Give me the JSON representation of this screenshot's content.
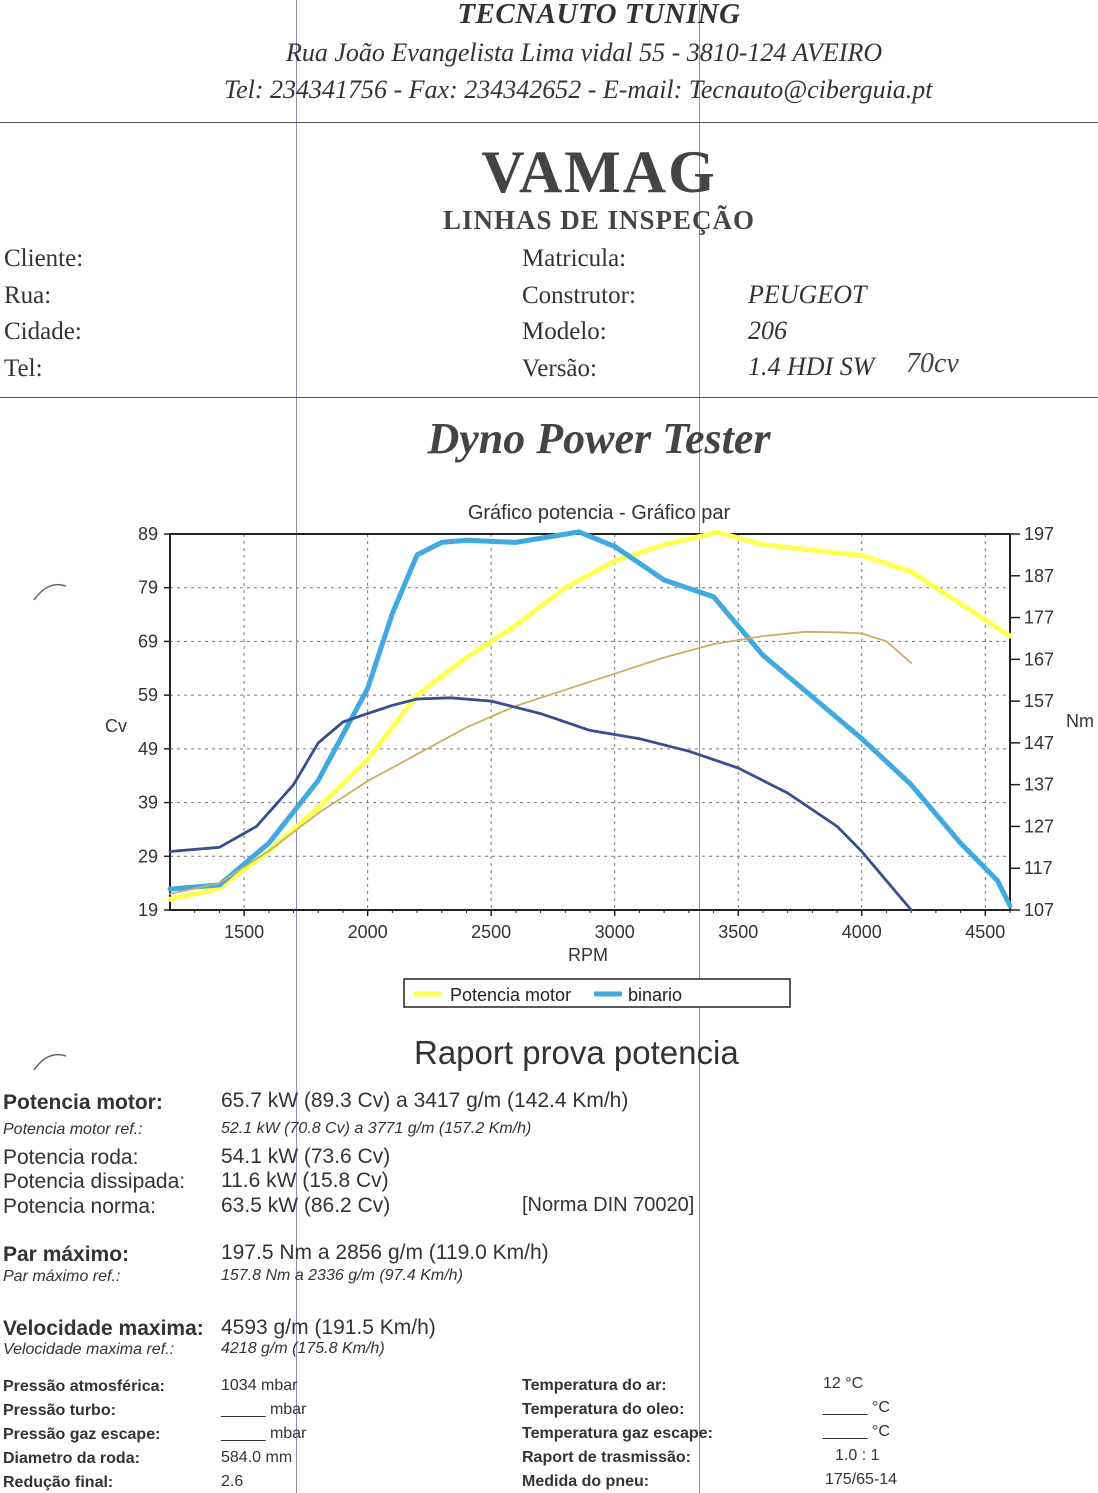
{
  "header": {
    "company": "TECNAUTO TUNING",
    "address": "Rua João Evangelista Lima vidal 55 - 3810-124 AVEIRO",
    "contacts": "Tel: 234341756 - Fax: 234342652 - E-mail: Tecnauto@ciberguia.pt"
  },
  "brand": {
    "name": "VAMAG",
    "subtitle": "LINHAS DE INSPEÇÃO"
  },
  "client": {
    "cliente_label": "Cliente:",
    "rua_label": "Rua:",
    "cidade_label": "Cidade:",
    "tel_label": "Tel:"
  },
  "vehicle": {
    "matricula_label": "Matricula:",
    "construtor_label": "Construtor:",
    "construtor": "PEUGEOT",
    "modelo_label": "Modelo:",
    "modelo": "206",
    "versao_label": "Versão:",
    "versao": "1.4 HDI SW",
    "versao_note": "70cv"
  },
  "section_title": "Dyno Power Tester",
  "chart_data": {
    "type": "line",
    "title": "Gráfico potencia - Gráfico par",
    "xlabel": "RPM",
    "ylabel_left": "Cv",
    "ylabel_right": "Nm",
    "xlim": [
      1200,
      4600
    ],
    "ylim_left": [
      19,
      89
    ],
    "ylim_right": [
      107,
      197
    ],
    "x_ticks": [
      1500,
      2000,
      2500,
      3000,
      3500,
      4000,
      4500
    ],
    "y_ticks_left": [
      19,
      29,
      39,
      49,
      59,
      69,
      79,
      89
    ],
    "y_ticks_right": [
      107,
      117,
      127,
      137,
      147,
      157,
      167,
      177,
      187,
      197
    ],
    "grid": true,
    "legend": "bottom",
    "series": [
      {
        "name": "Potencia motor",
        "axis": "left",
        "color": "#ffff55",
        "x": [
          1200,
          1400,
          1600,
          1800,
          2000,
          2200,
          2400,
          2600,
          2800,
          3000,
          3200,
          3417,
          3600,
          3800,
          4000,
          4200,
          4400,
          4600
        ],
        "y": [
          21,
          23,
          30,
          38,
          47,
          59,
          66,
          72,
          79,
          84,
          87,
          89.3,
          87,
          86,
          85,
          82,
          76,
          70
        ]
      },
      {
        "name": "binario",
        "axis": "right",
        "color": "#3fa9e0",
        "x": [
          1200,
          1400,
          1600,
          1800,
          2000,
          2100,
          2200,
          2300,
          2400,
          2600,
          2856,
          3000,
          3200,
          3400,
          3600,
          3800,
          4000,
          4200,
          4400,
          4550,
          4600
        ],
        "y": [
          112,
          113,
          123,
          138,
          160,
          178,
          192,
          195,
          195.5,
          195,
          197.5,
          194,
          186,
          182,
          168,
          158,
          148,
          137,
          123,
          114,
          108
        ]
      },
      {
        "axis": "left",
        "color": "#c8b060",
        "x": [
          1200,
          1400,
          1600,
          1800,
          2000,
          2200,
          2400,
          2600,
          2800,
          3000,
          3200,
          3400,
          3600,
          3771,
          3900,
          4000,
          4100,
          4200
        ],
        "y": [
          22,
          24,
          30,
          37,
          43,
          48,
          53,
          57,
          60,
          63,
          66,
          68.5,
          70,
          70.8,
          70.7,
          70.5,
          69,
          65
        ]
      },
      {
        "axis": "right",
        "color": "#3b4e8c",
        "x": [
          1200,
          1400,
          1550,
          1700,
          1800,
          1900,
          2000,
          2100,
          2200,
          2336,
          2500,
          2700,
          2900,
          3100,
          3300,
          3500,
          3700,
          3900,
          4000,
          4100,
          4200
        ],
        "y": [
          121,
          122,
          127,
          137,
          147,
          152,
          154,
          156,
          157.5,
          157.8,
          157,
          154,
          150,
          148,
          145,
          141,
          135,
          127,
          121,
          114,
          107
        ]
      }
    ]
  },
  "report": {
    "title": "Raport prova potencia",
    "potencia_motor_label": "Potencia motor:",
    "potencia_motor_value": "65.7 kW (89.3 Cv) a 3417 g/m (142.4 Km/h)",
    "potencia_motor_ref_label": "Potencia motor ref.:",
    "potencia_motor_ref_value": "52.1 kW (70.8 Cv) a 3771 g/m (157.2 Km/h)",
    "potencia_roda_label": "Potencia roda:",
    "potencia_roda_value": "54.1 kW (73.6 Cv)",
    "potencia_dissipada_label": "Potencia dissipada:",
    "potencia_dissipada_value": "11.6 kW (15.8 Cv)",
    "potencia_norma_label": "Potencia norma:",
    "potencia_norma_value": "63.5 kW (86.2 Cv)",
    "norma": "[Norma DIN 70020]",
    "par_maximo_label": "Par máximo:",
    "par_maximo_value": "197.5 Nm a 2856 g/m (119.0 Km/h)",
    "par_maximo_ref_label": "Par máximo ref.:",
    "par_maximo_ref_value": "157.8 Nm a 2336 g/m (97.4 Km/h)",
    "velocidade_maxima_label": "Velocidade maxima:",
    "velocidade_maxima_value": "4593 g/m (191.5 Km/h)",
    "velocidade_maxima_ref_label": "Velocidade maxima ref.:",
    "velocidade_maxima_ref_value": "4218 g/m (175.8 Km/h)"
  },
  "conditions": {
    "pressao_atm_label": "Pressão atmosférica:",
    "pressao_atm_value": "1034 mbar",
    "pressao_turbo_label": "Pressão turbo:",
    "pressao_turbo_value": "_____ mbar",
    "pressao_gaz_label": "Pressão gaz escape:",
    "pressao_gaz_value": "_____ mbar",
    "diametro_roda_label": "Diametro da roda:",
    "diametro_roda_value": "584.0 mm",
    "reducao_final_label": "Redução final:",
    "reducao_final_value": "2.6",
    "temp_ar_label": "Temperatura do ar:",
    "temp_ar_value": "12 °C",
    "temp_oleo_label": "Temperatura do oleo:",
    "temp_oleo_value": "_____ °C",
    "temp_gaz_label": "Temperatura gaz escape:",
    "temp_gaz_value": "_____ °C",
    "raport_trasmissao_label": "Raport de trasmissão:",
    "raport_trasmissao_value": "1.0 : 1",
    "medida_pneu_label": "Medida do pneu:",
    "medida_pneu_value": "175/65-14"
  }
}
